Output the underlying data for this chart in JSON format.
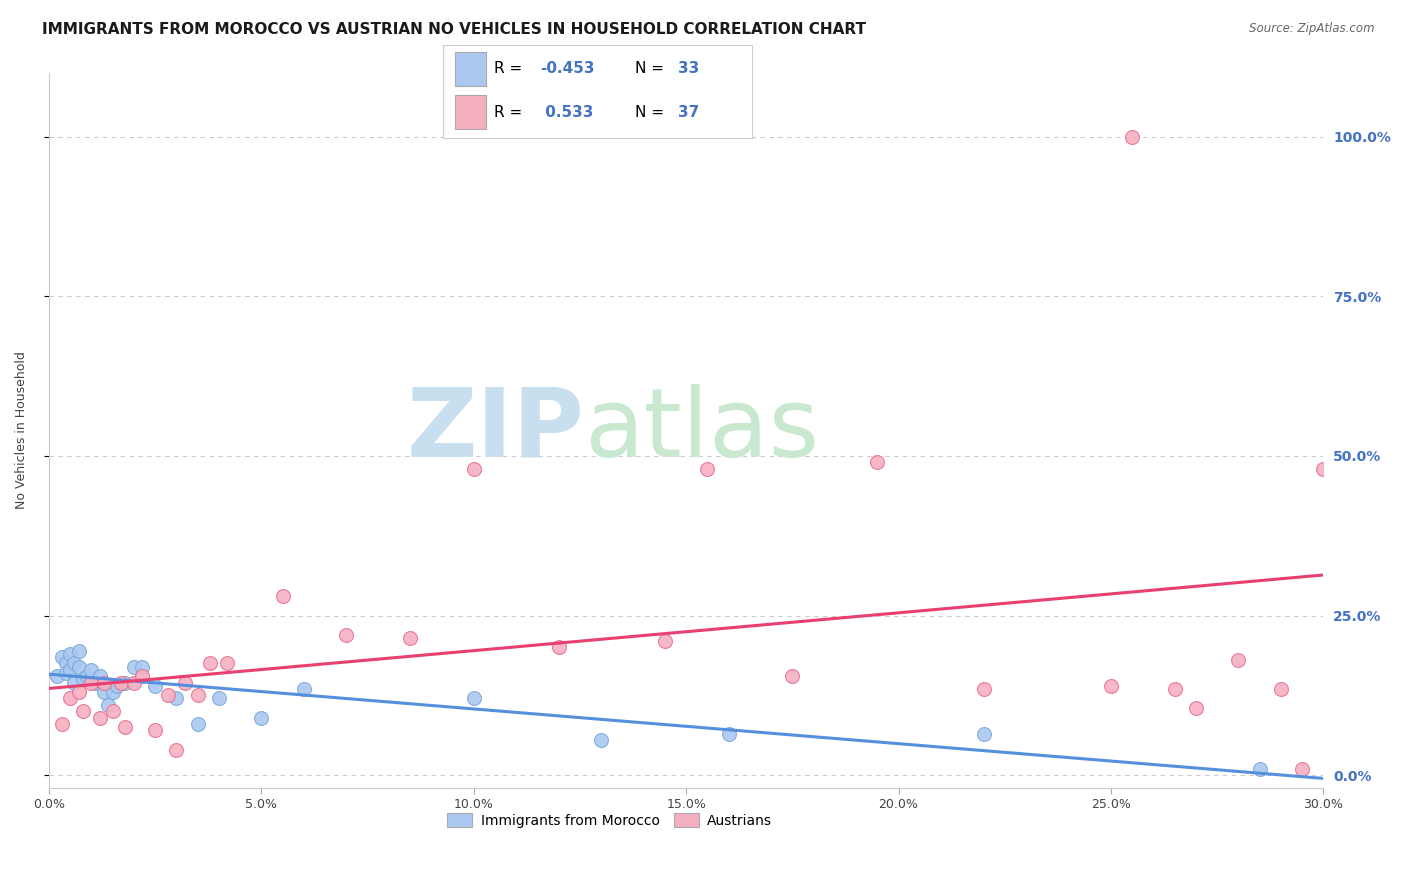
{
  "title": "IMMIGRANTS FROM MOROCCO VS AUSTRIAN NO VEHICLES IN HOUSEHOLD CORRELATION CHART",
  "source": "Source: ZipAtlas.com",
  "ylabel_left": "No Vehicles in Household",
  "xlim": [
    0.0,
    0.3
  ],
  "ylim": [
    -0.02,
    1.1
  ],
  "yticks_right": [
    0.0,
    0.25,
    0.5,
    0.75,
    1.0
  ],
  "ytick_labels_right": [
    "0.0%",
    "25.0%",
    "50.0%",
    "75.0%",
    "100.0%"
  ],
  "xticks": [
    0.0,
    0.05,
    0.1,
    0.15,
    0.2,
    0.25,
    0.3
  ],
  "xtick_labels": [
    "0.0%",
    "5.0%",
    "10.0%",
    "15.0%",
    "20.0%",
    "25.0%",
    "30.0%"
  ],
  "grid_color": "#cccccc",
  "background_color": "#ffffff",
  "blue_fill": "#aac8f0",
  "pink_fill": "#f5b0c0",
  "blue_edge": "#7aaada",
  "pink_edge": "#e87090",
  "blue_line_color": "#5590dd",
  "pink_line_color": "#e84070",
  "text_color_blue": "#4472c4",
  "legend_r_blue": "-0.453",
  "legend_n_blue": "33",
  "legend_r_pink": "0.533",
  "legend_n_pink": "37",
  "legend_label_blue": "Immigrants from Morocco",
  "legend_label_pink": "Austrians",
  "blue_x": [
    0.002,
    0.003,
    0.004,
    0.004,
    0.005,
    0.005,
    0.006,
    0.006,
    0.007,
    0.007,
    0.008,
    0.009,
    0.01,
    0.011,
    0.012,
    0.013,
    0.014,
    0.015,
    0.016,
    0.018,
    0.02,
    0.022,
    0.025,
    0.03,
    0.035,
    0.04,
    0.05,
    0.06,
    0.1,
    0.13,
    0.16,
    0.22,
    0.285
  ],
  "blue_y": [
    0.155,
    0.185,
    0.175,
    0.16,
    0.19,
    0.165,
    0.145,
    0.175,
    0.195,
    0.17,
    0.15,
    0.155,
    0.165,
    0.145,
    0.155,
    0.13,
    0.11,
    0.13,
    0.14,
    0.145,
    0.17,
    0.17,
    0.14,
    0.12,
    0.08,
    0.12,
    0.09,
    0.135,
    0.12,
    0.055,
    0.065,
    0.065,
    0.01
  ],
  "pink_x": [
    0.003,
    0.005,
    0.007,
    0.008,
    0.01,
    0.012,
    0.013,
    0.015,
    0.017,
    0.018,
    0.02,
    0.022,
    0.025,
    0.028,
    0.03,
    0.032,
    0.035,
    0.038,
    0.042,
    0.055,
    0.07,
    0.085,
    0.1,
    0.12,
    0.145,
    0.155,
    0.175,
    0.195,
    0.22,
    0.25,
    0.255,
    0.265,
    0.27,
    0.28,
    0.29,
    0.295,
    0.3
  ],
  "pink_y": [
    0.08,
    0.12,
    0.13,
    0.1,
    0.145,
    0.09,
    0.145,
    0.1,
    0.145,
    0.075,
    0.145,
    0.155,
    0.07,
    0.125,
    0.04,
    0.145,
    0.125,
    0.175,
    0.175,
    0.28,
    0.22,
    0.215,
    0.48,
    0.2,
    0.21,
    0.48,
    0.155,
    0.49,
    0.135,
    0.14,
    1.0,
    0.135,
    0.105,
    0.18,
    0.135,
    0.01,
    0.48
  ],
  "watermark_zip": "ZIP",
  "watermark_atlas": "atlas",
  "watermark_color_zip": "#c8dff0",
  "watermark_color_atlas": "#c8e8d0",
  "title_fontsize": 11,
  "axis_label_fontsize": 9,
  "tick_fontsize": 9,
  "right_tick_color": "#4472c4",
  "marker_size": 100
}
